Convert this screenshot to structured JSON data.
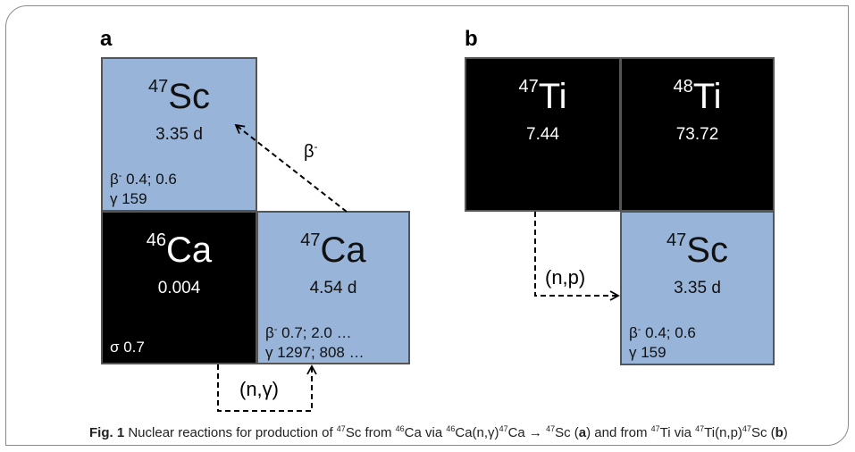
{
  "panel_a": {
    "label": "a",
    "sc47": {
      "mass": "47",
      "element": "Sc",
      "halflife": "3.35 d",
      "beta_sym": "β",
      "beta_sign": "-",
      "beta_vals": " 0.4; 0.6",
      "gamma": "γ 159"
    },
    "ca46": {
      "mass": "46",
      "element": "Ca",
      "abundance": "0.004",
      "sigma": "σ 0.7"
    },
    "ca47": {
      "mass": "47",
      "element": "Ca",
      "halflife": "4.54 d",
      "beta_sym": "β",
      "beta_sign": "-",
      "beta_vals": " 0.7; 2.0 …",
      "gamma": "γ 1297; 808 …"
    },
    "decay_label_sym": "β",
    "decay_label_sign": "-",
    "reaction_label": "(n,γ)"
  },
  "panel_b": {
    "label": "b",
    "ti47": {
      "mass": "47",
      "element": "Ti",
      "abundance": "7.44"
    },
    "ti48": {
      "mass": "48",
      "element": "Ti",
      "abundance": "73.72"
    },
    "sc47": {
      "mass": "47",
      "element": "Sc",
      "halflife": "3.35 d",
      "beta_sym": "β",
      "beta_sign": "-",
      "beta_vals": " 0.4; 0.6",
      "gamma": "γ 159"
    },
    "reaction_label": "(n,p)"
  },
  "caption": {
    "fig": "Fig. 1",
    "t1": " Nuclear reactions for production of ",
    "m1": "47",
    "e1": "Sc from ",
    "m2": "46",
    "e2": "Ca via ",
    "m3": "46",
    "e3": "Ca(n,γ)",
    "m4": "47",
    "e4": "Ca → ",
    "m5": "47",
    "e5": "Sc (",
    "pa": "a",
    "t2": ") and from ",
    "m6": "47",
    "e6": "Ti via ",
    "m7": "47",
    "e7": "Ti(n,p)",
    "m8": "47",
    "e8": "Sc (",
    "pb": "b",
    "t3": ")"
  },
  "colors": {
    "unstable": "#98b4d8",
    "stable": "#000000",
    "border": "#555555"
  }
}
